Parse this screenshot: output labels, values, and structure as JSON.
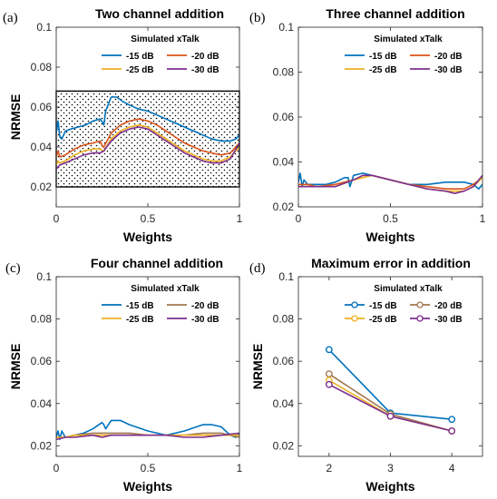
{
  "chart_data": [
    {
      "panel": "(a)",
      "type": "line",
      "title": "Two channel addition",
      "xlabel": "Weights",
      "ylabel": "NRMSE",
      "xlim": [
        0,
        1
      ],
      "ylim": [
        0.01,
        0.1
      ],
      "xticks": [
        "0",
        "0.5",
        "1"
      ],
      "yticks": [
        "0.02",
        "0.04",
        "0.06",
        "0.08",
        "0.1"
      ],
      "legend_title": "Simulated xTalk",
      "legend_position": "top-right",
      "grid": false,
      "band": {
        "y0": 0.02,
        "y1": 0.068
      },
      "series": [
        {
          "name": "-15 dB",
          "color": "#0072BD",
          "x": [
            0,
            0.01,
            0.02,
            0.03,
            0.05,
            0.08,
            0.12,
            0.16,
            0.2,
            0.24,
            0.255,
            0.26,
            0.27,
            0.3,
            0.33,
            0.36,
            0.4,
            0.45,
            0.5,
            0.55,
            0.6,
            0.65,
            0.7,
            0.75,
            0.8,
            0.85,
            0.9,
            0.95,
            0.98,
            1
          ],
          "y": [
            0.047,
            0.053,
            0.045,
            0.044,
            0.048,
            0.049,
            0.05,
            0.051,
            0.053,
            0.054,
            0.052,
            0.051,
            0.058,
            0.065,
            0.065,
            0.063,
            0.061,
            0.059,
            0.058,
            0.056,
            0.054,
            0.052,
            0.05,
            0.048,
            0.046,
            0.044,
            0.043,
            0.043,
            0.044,
            0.046
          ]
        },
        {
          "name": "-20 dB",
          "color": "#D95319",
          "x": [
            0,
            0.01,
            0.02,
            0.05,
            0.1,
            0.15,
            0.2,
            0.24,
            0.255,
            0.26,
            0.3,
            0.35,
            0.4,
            0.45,
            0.5,
            0.55,
            0.6,
            0.65,
            0.7,
            0.75,
            0.8,
            0.85,
            0.9,
            0.95,
            1
          ],
          "y": [
            0.035,
            0.038,
            0.035,
            0.036,
            0.039,
            0.041,
            0.042,
            0.043,
            0.04,
            0.04,
            0.047,
            0.051,
            0.053,
            0.054,
            0.053,
            0.051,
            0.048,
            0.045,
            0.042,
            0.04,
            0.038,
            0.037,
            0.036,
            0.037,
            0.042
          ]
        },
        {
          "name": "-25 dB",
          "color": "#EDB120",
          "x": [
            0,
            0.01,
            0.02,
            0.05,
            0.1,
            0.15,
            0.2,
            0.24,
            0.255,
            0.26,
            0.3,
            0.35,
            0.4,
            0.45,
            0.5,
            0.55,
            0.6,
            0.65,
            0.7,
            0.75,
            0.8,
            0.85,
            0.9,
            0.95,
            1
          ],
          "y": [
            0.031,
            0.033,
            0.032,
            0.033,
            0.036,
            0.038,
            0.039,
            0.039,
            0.038,
            0.038,
            0.044,
            0.048,
            0.05,
            0.051,
            0.05,
            0.047,
            0.044,
            0.041,
            0.038,
            0.036,
            0.034,
            0.033,
            0.033,
            0.035,
            0.04
          ]
        },
        {
          "name": "-30 dB",
          "color": "#7E2F8E",
          "x": [
            0,
            0.02,
            0.05,
            0.1,
            0.15,
            0.2,
            0.24,
            0.26,
            0.3,
            0.35,
            0.4,
            0.45,
            0.5,
            0.55,
            0.6,
            0.65,
            0.7,
            0.75,
            0.8,
            0.85,
            0.9,
            0.95,
            1
          ],
          "y": [
            0.029,
            0.031,
            0.032,
            0.034,
            0.036,
            0.037,
            0.037,
            0.038,
            0.043,
            0.047,
            0.049,
            0.05,
            0.049,
            0.046,
            0.043,
            0.04,
            0.037,
            0.035,
            0.033,
            0.032,
            0.032,
            0.034,
            0.042
          ]
        }
      ]
    },
    {
      "panel": "(b)",
      "type": "line",
      "title": "Three channel addition",
      "xlabel": "Weights",
      "ylabel": "",
      "xlim": [
        0,
        1
      ],
      "ylim": [
        0.02,
        0.1
      ],
      "xticks": [
        "0",
        "0.5",
        "1"
      ],
      "yticks": [
        "0.02",
        "0.04",
        "0.06",
        "0.08",
        "0.1"
      ],
      "legend_title": "Simulated xTalk",
      "legend_position": "top-right",
      "grid": false,
      "series": [
        {
          "name": "-15 dB",
          "color": "#0072BD",
          "x": [
            0,
            0.01,
            0.02,
            0.03,
            0.05,
            0.1,
            0.15,
            0.2,
            0.25,
            0.27,
            0.28,
            0.3,
            0.35,
            0.4,
            0.45,
            0.5,
            0.55,
            0.6,
            0.7,
            0.8,
            0.9,
            0.95,
            0.98,
            1
          ],
          "y": [
            0.031,
            0.035,
            0.029,
            0.032,
            0.03,
            0.03,
            0.03,
            0.031,
            0.033,
            0.033,
            0.029,
            0.034,
            0.035,
            0.034,
            0.033,
            0.032,
            0.031,
            0.03,
            0.03,
            0.031,
            0.031,
            0.03,
            0.028,
            0.03
          ]
        },
        {
          "name": "-20 dB",
          "color": "#D95319",
          "x": [
            0,
            0.05,
            0.1,
            0.2,
            0.3,
            0.35,
            0.4,
            0.5,
            0.6,
            0.7,
            0.8,
            0.9,
            0.95,
            1
          ],
          "y": [
            0.03,
            0.03,
            0.029,
            0.03,
            0.032,
            0.034,
            0.034,
            0.032,
            0.03,
            0.029,
            0.028,
            0.028,
            0.03,
            0.033
          ]
        },
        {
          "name": "-25 dB",
          "color": "#EDB120",
          "x": [
            0,
            0.05,
            0.1,
            0.2,
            0.3,
            0.35,
            0.4,
            0.5,
            0.6,
            0.7,
            0.8,
            0.9,
            0.95,
            1
          ],
          "y": [
            0.029,
            0.029,
            0.029,
            0.029,
            0.032,
            0.033,
            0.034,
            0.032,
            0.03,
            0.028,
            0.027,
            0.027,
            0.029,
            0.033
          ]
        },
        {
          "name": "-30 dB",
          "color": "#7E2F8E",
          "x": [
            0,
            0.05,
            0.1,
            0.2,
            0.3,
            0.35,
            0.4,
            0.5,
            0.6,
            0.7,
            0.8,
            0.85,
            0.9,
            0.95,
            1
          ],
          "y": [
            0.029,
            0.029,
            0.029,
            0.029,
            0.032,
            0.034,
            0.034,
            0.032,
            0.03,
            0.028,
            0.027,
            0.026,
            0.027,
            0.029,
            0.034
          ]
        }
      ]
    },
    {
      "panel": "(c)",
      "type": "line",
      "title": "Four channel addition",
      "xlabel": "Weights",
      "ylabel": "NRMSE",
      "xlim": [
        0,
        1
      ],
      "ylim": [
        0.015,
        0.1
      ],
      "xticks": [
        "0",
        "0.5",
        "1"
      ],
      "yticks": [
        "0.02",
        "0.04",
        "0.06",
        "0.08",
        "0.1"
      ],
      "legend_title": "Simulated xTalk",
      "legend_position": "top-right",
      "grid": false,
      "series": [
        {
          "name": "-15 dB",
          "color": "#0072BD",
          "x": [
            0,
            0.01,
            0.02,
            0.03,
            0.05,
            0.1,
            0.15,
            0.2,
            0.25,
            0.26,
            0.27,
            0.3,
            0.35,
            0.4,
            0.5,
            0.6,
            0.7,
            0.8,
            0.85,
            0.9,
            0.95,
            0.98,
            1
          ],
          "y": [
            0.024,
            0.027,
            0.023,
            0.027,
            0.024,
            0.025,
            0.026,
            0.028,
            0.031,
            0.03,
            0.028,
            0.032,
            0.032,
            0.03,
            0.027,
            0.025,
            0.027,
            0.03,
            0.03,
            0.029,
            0.025,
            0.024,
            0.026
          ]
        },
        {
          "name": "-20 dB",
          "color": "#A07850",
          "x": [
            0,
            0.05,
            0.1,
            0.2,
            0.25,
            0.3,
            0.4,
            0.5,
            0.6,
            0.7,
            0.8,
            0.9,
            1
          ],
          "y": [
            0.024,
            0.024,
            0.025,
            0.026,
            0.026,
            0.026,
            0.026,
            0.025,
            0.025,
            0.025,
            0.026,
            0.026,
            0.024
          ]
        },
        {
          "name": "-25 dB",
          "color": "#EDB120",
          "x": [
            0,
            0.05,
            0.1,
            0.2,
            0.3,
            0.4,
            0.5,
            0.6,
            0.7,
            0.8,
            0.9,
            1
          ],
          "y": [
            0.024,
            0.024,
            0.025,
            0.025,
            0.025,
            0.025,
            0.025,
            0.025,
            0.025,
            0.025,
            0.025,
            0.025
          ]
        },
        {
          "name": "-30 dB",
          "color": "#7E2F8E",
          "x": [
            0,
            0.05,
            0.1,
            0.2,
            0.25,
            0.3,
            0.4,
            0.5,
            0.6,
            0.7,
            0.8,
            0.9,
            1
          ],
          "y": [
            0.023,
            0.024,
            0.024,
            0.025,
            0.024,
            0.025,
            0.025,
            0.025,
            0.025,
            0.024,
            0.024,
            0.025,
            0.026
          ]
        }
      ]
    },
    {
      "panel": "(d)",
      "type": "line",
      "title": "Maximum error in addition",
      "xlabel": "Weights",
      "ylabel": "NRMSE",
      "xlim": [
        1.5,
        4.5
      ],
      "ylim": [
        0.015,
        0.1
      ],
      "xticks": [
        "2",
        "3",
        "4"
      ],
      "yticks": [
        "0.02",
        "0.04",
        "0.06",
        "0.08",
        "0.1"
      ],
      "legend_title": "Simulated xTalk",
      "legend_position": "top-right",
      "grid": false,
      "markers": "circle",
      "series": [
        {
          "name": "-15 dB",
          "color": "#0072BD",
          "x": [
            2,
            3,
            4
          ],
          "y": [
            0.0655,
            0.0355,
            0.0325
          ]
        },
        {
          "name": "-20 dB",
          "color": "#A07850",
          "x": [
            2,
            3,
            4
          ],
          "y": [
            0.054,
            0.035,
            0.027
          ]
        },
        {
          "name": "-25 dB",
          "color": "#EDB120",
          "x": [
            2,
            3,
            4
          ],
          "y": [
            0.051,
            0.034,
            0.027
          ]
        },
        {
          "name": "-30 dB",
          "color": "#7E2F8E",
          "x": [
            2,
            3,
            4
          ],
          "y": [
            0.049,
            0.034,
            0.027
          ]
        }
      ]
    }
  ]
}
